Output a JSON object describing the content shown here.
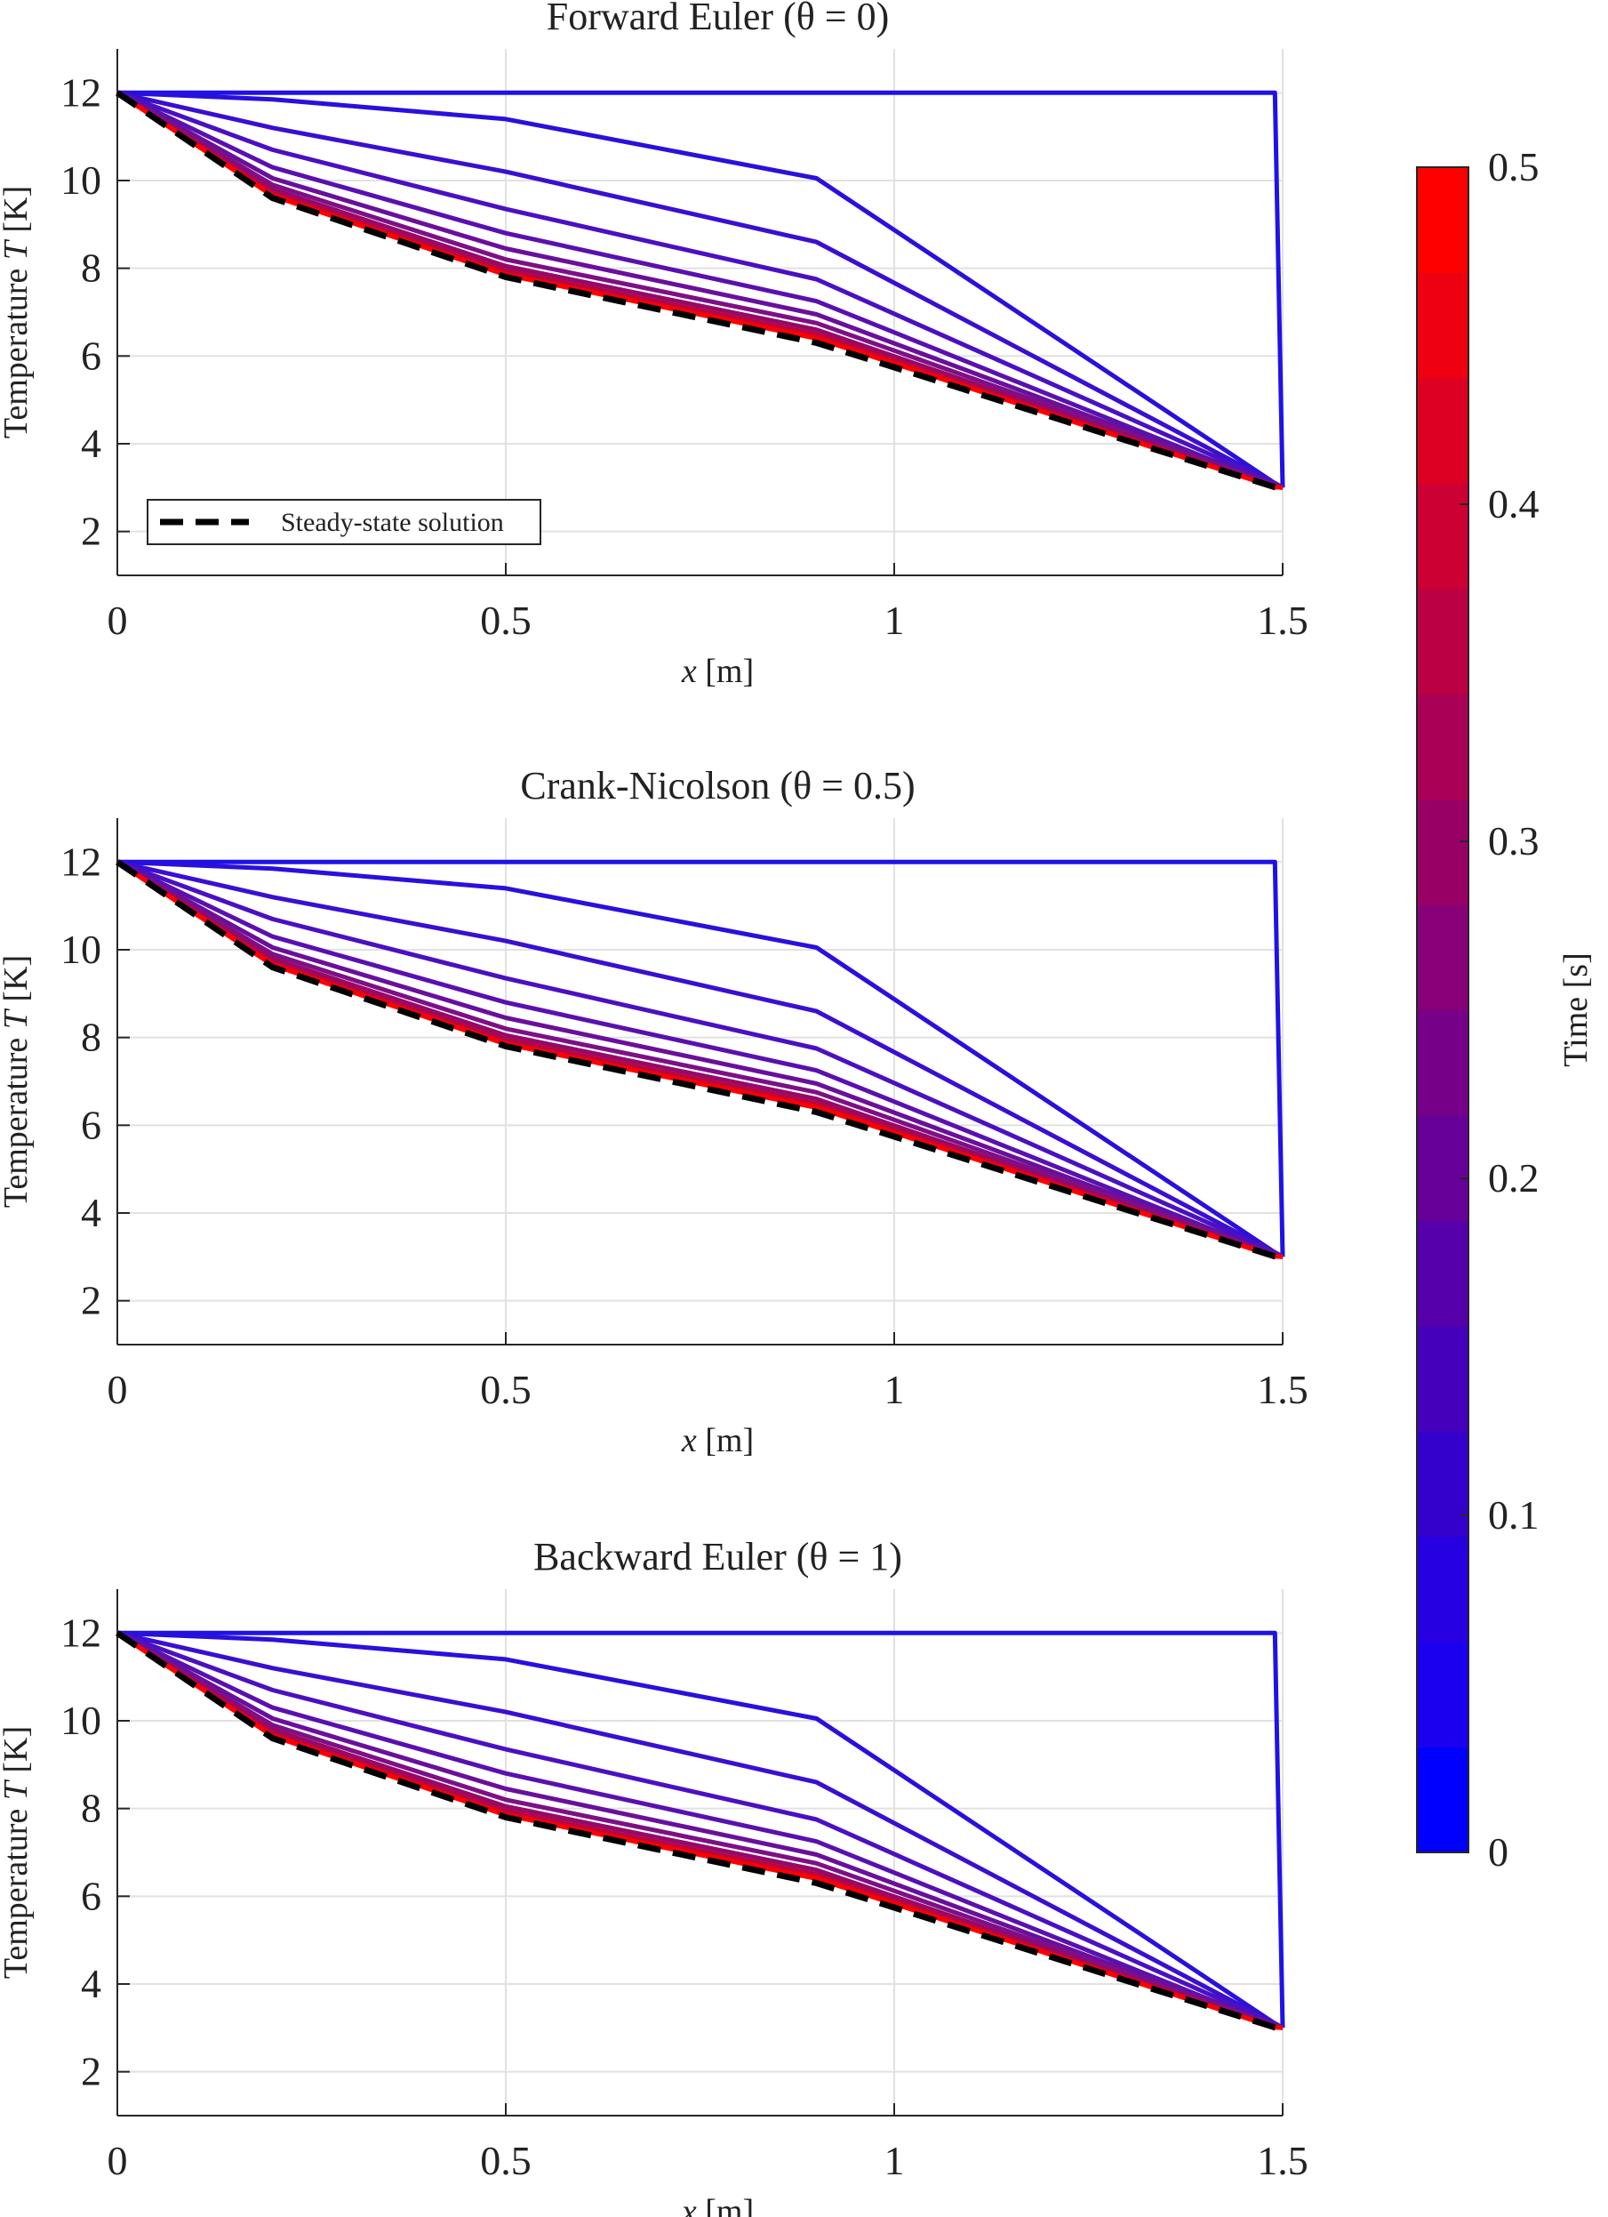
{
  "chart_data": {
    "type": "line",
    "x": [
      0,
      0.2,
      0.5,
      0.9,
      1.49,
      1.5
    ],
    "xlim": [
      0,
      1.5
    ],
    "ylim": [
      1,
      13
    ],
    "xticks": [
      "0",
      "0.5",
      "1",
      "1.5"
    ],
    "yticks": [
      "2",
      "4",
      "6",
      "8",
      "10",
      "12"
    ],
    "xlabel": "x [m]",
    "ylabel": "Temperature T [K]",
    "grid": true,
    "panels": [
      {
        "title": "Forward Euler (θ = 0)",
        "legend": {
          "label": "Steady-state solution",
          "position": "bottom-left"
        },
        "series": [
          {
            "time": 0.0,
            "color": "#1f12e6",
            "values": [
              12,
              12,
              12,
              12,
              12,
              3
            ]
          },
          {
            "time": 0.05,
            "color": "#2a10dc",
            "values": [
              12,
              11.85,
              11.4,
              10.05,
              3.1,
              3
            ]
          },
          {
            "time": 0.1,
            "color": "#3a0fd2",
            "values": [
              12,
              11.2,
              10.2,
              8.6,
              3.1,
              3
            ]
          },
          {
            "time": 0.15,
            "color": "#4a10c2",
            "values": [
              12,
              10.7,
              9.35,
              7.75,
              3.1,
              3
            ]
          },
          {
            "time": 0.2,
            "color": "#5a10b0",
            "values": [
              12,
              10.3,
              8.8,
              7.25,
              3.05,
              3
            ]
          },
          {
            "time": 0.25,
            "color": "#6a0f9c",
            "values": [
              12,
              10.05,
              8.45,
              6.95,
              3.05,
              3
            ]
          },
          {
            "time": 0.3,
            "color": "#7e0f86",
            "values": [
              12,
              9.9,
              8.2,
              6.75,
              3.05,
              3
            ]
          },
          {
            "time": 0.35,
            "color": "#96086a",
            "values": [
              12,
              9.8,
              8.05,
              6.6,
              3.02,
              3
            ]
          },
          {
            "time": 0.4,
            "color": "#b40645",
            "values": [
              12,
              9.72,
              7.95,
              6.5,
              3.02,
              3
            ]
          },
          {
            "time": 0.45,
            "color": "#d80222",
            "values": [
              12,
              9.68,
              7.88,
              6.44,
              3.01,
              3
            ]
          },
          {
            "time": 0.5,
            "color": "#ff0000",
            "values": [
              12,
              9.65,
              7.85,
              6.4,
              3.01,
              3
            ]
          }
        ],
        "steady": [
          12,
          9.6,
          7.8,
          6.3,
          3.01,
          3
        ]
      },
      {
        "title": "Crank-Nicolson (θ = 0.5)",
        "series": [
          {
            "time": 0.0,
            "color": "#1f12e6",
            "values": [
              12,
              12,
              12,
              12,
              12,
              3
            ]
          },
          {
            "time": 0.05,
            "color": "#2a10dc",
            "values": [
              12,
              11.85,
              11.4,
              10.05,
              3.1,
              3
            ]
          },
          {
            "time": 0.1,
            "color": "#3a0fd2",
            "values": [
              12,
              11.2,
              10.2,
              8.6,
              3.1,
              3
            ]
          },
          {
            "time": 0.15,
            "color": "#4a10c2",
            "values": [
              12,
              10.7,
              9.35,
              7.75,
              3.1,
              3
            ]
          },
          {
            "time": 0.2,
            "color": "#5a10b0",
            "values": [
              12,
              10.3,
              8.8,
              7.25,
              3.05,
              3
            ]
          },
          {
            "time": 0.25,
            "color": "#6a0f9c",
            "values": [
              12,
              10.05,
              8.45,
              6.95,
              3.05,
              3
            ]
          },
          {
            "time": 0.3,
            "color": "#7e0f86",
            "values": [
              12,
              9.9,
              8.2,
              6.75,
              3.05,
              3
            ]
          },
          {
            "time": 0.35,
            "color": "#96086a",
            "values": [
              12,
              9.8,
              8.05,
              6.6,
              3.02,
              3
            ]
          },
          {
            "time": 0.4,
            "color": "#b40645",
            "values": [
              12,
              9.72,
              7.95,
              6.5,
              3.02,
              3
            ]
          },
          {
            "time": 0.45,
            "color": "#d80222",
            "values": [
              12,
              9.68,
              7.88,
              6.44,
              3.01,
              3
            ]
          },
          {
            "time": 0.5,
            "color": "#ff0000",
            "values": [
              12,
              9.65,
              7.85,
              6.4,
              3.01,
              3
            ]
          }
        ],
        "steady": [
          12,
          9.6,
          7.8,
          6.3,
          3.01,
          3
        ]
      },
      {
        "title": "Backward Euler (θ = 1)",
        "series": [
          {
            "time": 0.0,
            "color": "#1f12e6",
            "values": [
              12,
              12,
              12,
              12,
              12,
              3
            ]
          },
          {
            "time": 0.05,
            "color": "#2a10dc",
            "values": [
              12,
              11.85,
              11.4,
              10.05,
              3.1,
              3
            ]
          },
          {
            "time": 0.1,
            "color": "#3a0fd2",
            "values": [
              12,
              11.2,
              10.2,
              8.6,
              3.1,
              3
            ]
          },
          {
            "time": 0.15,
            "color": "#4a10c2",
            "values": [
              12,
              10.7,
              9.35,
              7.75,
              3.1,
              3
            ]
          },
          {
            "time": 0.2,
            "color": "#5a10b0",
            "values": [
              12,
              10.3,
              8.8,
              7.25,
              3.05,
              3
            ]
          },
          {
            "time": 0.25,
            "color": "#6a0f9c",
            "values": [
              12,
              10.05,
              8.45,
              6.95,
              3.05,
              3
            ]
          },
          {
            "time": 0.3,
            "color": "#7e0f86",
            "values": [
              12,
              9.9,
              8.2,
              6.75,
              3.05,
              3
            ]
          },
          {
            "time": 0.35,
            "color": "#96086a",
            "values": [
              12,
              9.8,
              8.05,
              6.6,
              3.02,
              3
            ]
          },
          {
            "time": 0.4,
            "color": "#b40645",
            "values": [
              12,
              9.72,
              7.95,
              6.5,
              3.02,
              3
            ]
          },
          {
            "time": 0.45,
            "color": "#d80222",
            "values": [
              12,
              9.68,
              7.88,
              6.44,
              3.01,
              3
            ]
          },
          {
            "time": 0.5,
            "color": "#ff0000",
            "values": [
              12,
              9.65,
              7.85,
              6.4,
              3.01,
              3
            ]
          }
        ],
        "steady": [
          12,
          9.6,
          7.8,
          6.3,
          3.01,
          3
        ]
      }
    ],
    "colorbar": {
      "label": "Time [s]",
      "min": 0,
      "max": 0.5,
      "ticks": [
        "0",
        "0.1",
        "0.2",
        "0.3",
        "0.4",
        "0.5"
      ],
      "colors": [
        "#0000ff",
        "#1a00ee",
        "#2600e0",
        "#3300cc",
        "#4400bb",
        "#5500aa",
        "#660099",
        "#770088",
        "#880077",
        "#990066",
        "#aa0055",
        "#bb0044",
        "#cc0033",
        "#dd0022",
        "#ee0011",
        "#ff0000"
      ]
    }
  }
}
